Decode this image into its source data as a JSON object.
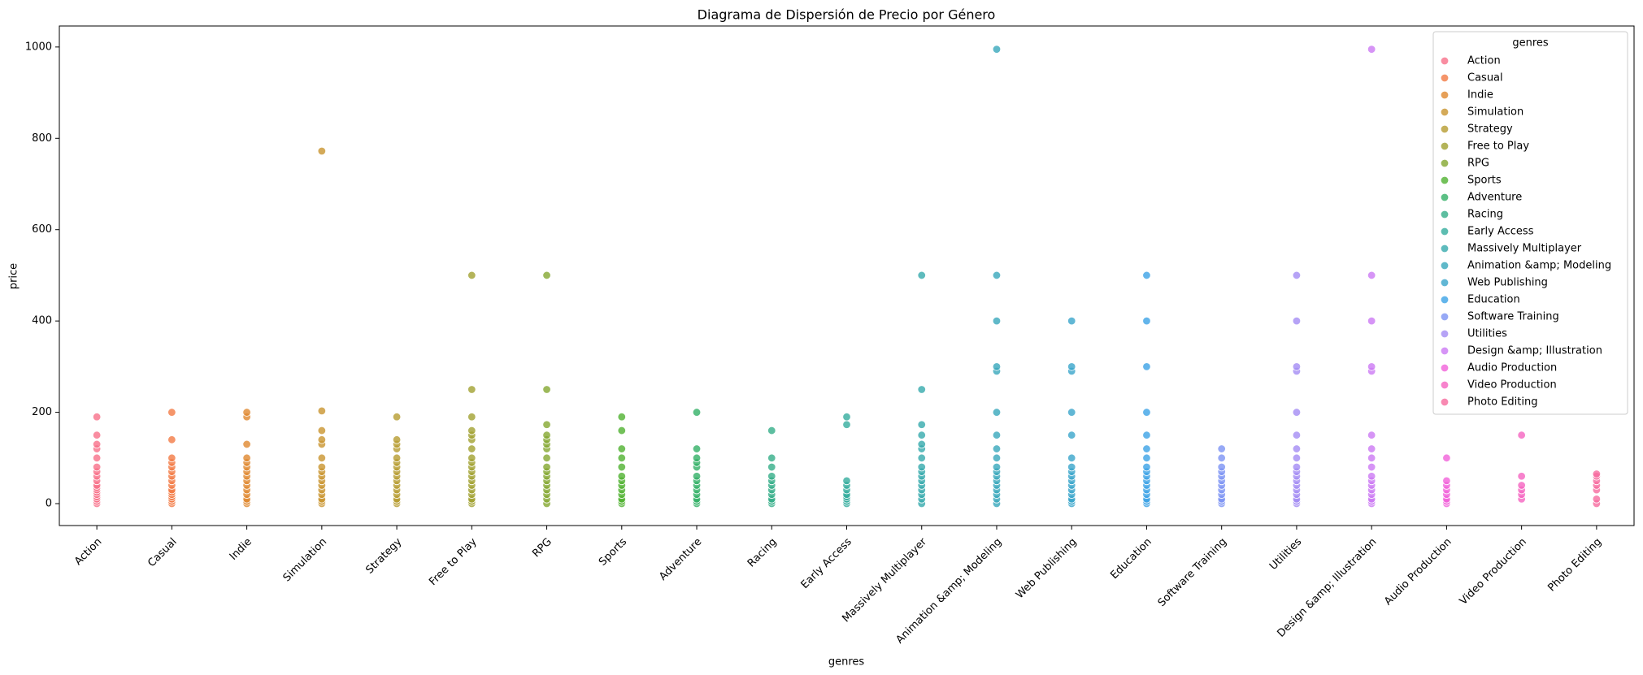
{
  "chart_data": {
    "type": "scatter",
    "title": "Diagrama de Dispersión de Precio por Género",
    "x_label": "genres",
    "y_label": "price",
    "legend_title": "genres",
    "legend_position": "upper right",
    "categories": [
      "Action",
      "Casual",
      "Indie",
      "Simulation",
      "Strategy",
      "Free to Play",
      "RPG",
      "Sports",
      "Adventure",
      "Racing",
      "Early Access",
      "Massively Multiplayer",
      "Animation &amp; Modeling",
      "Web Publishing",
      "Education",
      "Software Training",
      "Utilities",
      "Design &amp; Illustration",
      "Audio Production",
      "Video Production",
      "Photo Editing"
    ],
    "ylim": [
      -48,
      1046
    ],
    "yticks": [
      0,
      200,
      400,
      600,
      800,
      1000
    ],
    "grid": false,
    "series": [
      {
        "name": "Action",
        "color": "#f77189",
        "values": [
          0,
          5,
          10,
          15,
          20,
          25,
          30,
          35,
          40,
          50,
          60,
          70,
          80,
          100,
          120,
          130,
          150,
          190
        ]
      },
      {
        "name": "Casual",
        "color": "#f37b45",
        "values": [
          0,
          5,
          10,
          15,
          20,
          25,
          30,
          40,
          50,
          60,
          70,
          80,
          90,
          100,
          140,
          200
        ]
      },
      {
        "name": "Indie",
        "color": "#e08830",
        "values": [
          0,
          5,
          10,
          20,
          30,
          40,
          50,
          60,
          70,
          80,
          90,
          100,
          130,
          190,
          200
        ]
      },
      {
        "name": "Simulation",
        "color": "#c99530",
        "values": [
          0,
          5,
          10,
          20,
          30,
          40,
          50,
          60,
          70,
          80,
          100,
          130,
          140,
          160,
          203,
          772
        ]
      },
      {
        "name": "Strategy",
        "color": "#b69c31",
        "values": [
          0,
          5,
          10,
          20,
          30,
          40,
          50,
          60,
          70,
          80,
          90,
          100,
          120,
          130,
          140,
          190
        ]
      },
      {
        "name": "Free to Play",
        "color": "#a1a131",
        "values": [
          0,
          5,
          10,
          20,
          30,
          40,
          50,
          60,
          70,
          80,
          90,
          100,
          120,
          140,
          150,
          160,
          190,
          250,
          500
        ]
      },
      {
        "name": "RPG",
        "color": "#85a731",
        "values": [
          0,
          10,
          20,
          30,
          40,
          50,
          60,
          70,
          80,
          100,
          120,
          130,
          140,
          150,
          173,
          250,
          500
        ]
      },
      {
        "name": "Sports",
        "color": "#50b131",
        "values": [
          0,
          5,
          10,
          20,
          30,
          40,
          50,
          60,
          80,
          100,
          120,
          160,
          190
        ]
      },
      {
        "name": "Adventure",
        "color": "#33b067",
        "values": [
          0,
          5,
          10,
          20,
          30,
          40,
          50,
          60,
          80,
          90,
          100,
          120,
          200
        ]
      },
      {
        "name": "Racing",
        "color": "#34ae88",
        "values": [
          0,
          5,
          10,
          20,
          30,
          40,
          50,
          60,
          80,
          100,
          160
        ]
      },
      {
        "name": "Early Access",
        "color": "#35ac9e",
        "values": [
          0,
          5,
          10,
          15,
          20,
          30,
          40,
          50,
          173,
          190
        ]
      },
      {
        "name": "Massively Multiplayer",
        "color": "#36aaad",
        "values": [
          0,
          10,
          20,
          30,
          40,
          50,
          60,
          70,
          80,
          100,
          120,
          130,
          150,
          173,
          250,
          500
        ]
      },
      {
        "name": "Animation &amp; Modeling",
        "color": "#38a8bb",
        "values": [
          0,
          10,
          20,
          30,
          40,
          50,
          60,
          70,
          80,
          100,
          120,
          150,
          200,
          290,
          300,
          400,
          500,
          995
        ]
      },
      {
        "name": "Web Publishing",
        "color": "#3aa5cb",
        "values": [
          0,
          5,
          10,
          20,
          30,
          40,
          50,
          60,
          70,
          80,
          100,
          150,
          200,
          290,
          300,
          400
        ]
      },
      {
        "name": "Education",
        "color": "#3ca2e6",
        "values": [
          0,
          5,
          10,
          20,
          30,
          40,
          50,
          60,
          70,
          80,
          100,
          120,
          150,
          200,
          300,
          400,
          500
        ]
      },
      {
        "name": "Software Training",
        "color": "#7d94f4",
        "values": [
          0,
          5,
          10,
          20,
          30,
          40,
          50,
          60,
          70,
          80,
          100,
          120
        ]
      },
      {
        "name": "Utilities",
        "color": "#a48cf4",
        "values": [
          0,
          5,
          10,
          20,
          30,
          40,
          50,
          60,
          70,
          80,
          100,
          120,
          150,
          200,
          290,
          300,
          400,
          500
        ]
      },
      {
        "name": "Design &amp; Illustration",
        "color": "#cc79f4",
        "values": [
          0,
          5,
          10,
          20,
          30,
          40,
          50,
          60,
          80,
          100,
          120,
          150,
          290,
          300,
          400,
          500,
          995
        ]
      },
      {
        "name": "Audio Production",
        "color": "#f161d9",
        "values": [
          0,
          5,
          10,
          20,
          30,
          40,
          50,
          100
        ]
      },
      {
        "name": "Video Production",
        "color": "#f564c0",
        "values": [
          10,
          20,
          30,
          40,
          60,
          150
        ]
      },
      {
        "name": "Photo Editing",
        "color": "#f66b9f",
        "values": [
          0,
          10,
          30,
          40,
          50,
          60,
          65
        ]
      }
    ]
  }
}
